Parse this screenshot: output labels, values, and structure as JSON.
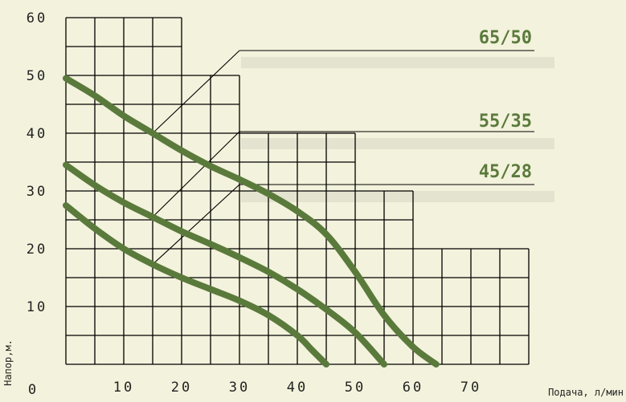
{
  "chart_data": {
    "type": "line",
    "xlabel": "Подача, л/мин",
    "ylabel": "Напор,м.",
    "xlim": [
      0,
      80
    ],
    "ylim": [
      0,
      60
    ],
    "x_ticks": [
      "10",
      "20",
      "30",
      "40",
      "50",
      "60",
      "70"
    ],
    "y_ticks": [
      "10",
      "20",
      "30",
      "40",
      "50",
      "60"
    ],
    "origin_label": "0",
    "grid": "stepped",
    "grid_steps": [
      {
        "x_max": 20,
        "y_max": 60
      },
      {
        "x_max": 30,
        "y_max": 50
      },
      {
        "x_max": 50,
        "y_max": 40
      },
      {
        "x_max": 60,
        "y_max": 30
      },
      {
        "x_max": 80,
        "y_max": 20
      }
    ],
    "series": [
      {
        "name": "65/50",
        "points": [
          [
            0,
            49.5
          ],
          [
            5,
            46.5
          ],
          [
            10,
            43
          ],
          [
            15,
            40
          ],
          [
            20,
            37
          ],
          [
            25,
            34.3
          ],
          [
            30,
            32
          ],
          [
            35,
            29.5
          ],
          [
            40,
            26.5
          ],
          [
            45,
            22.5
          ],
          [
            50,
            16
          ],
          [
            55,
            8.5
          ],
          [
            60,
            3
          ],
          [
            64,
            0
          ]
        ]
      },
      {
        "name": "55/35",
        "points": [
          [
            0,
            34.5
          ],
          [
            5,
            31
          ],
          [
            10,
            28
          ],
          [
            15,
            25.5
          ],
          [
            20,
            23
          ],
          [
            25,
            20.8
          ],
          [
            30,
            18.5
          ],
          [
            35,
            16
          ],
          [
            40,
            13
          ],
          [
            45,
            9.5
          ],
          [
            50,
            5.5
          ],
          [
            55,
            0
          ]
        ]
      },
      {
        "name": "45/28",
        "points": [
          [
            0,
            27.5
          ],
          [
            5,
            23.5
          ],
          [
            10,
            20
          ],
          [
            15,
            17.3
          ],
          [
            20,
            15
          ],
          [
            25,
            13
          ],
          [
            30,
            11
          ],
          [
            35,
            8.5
          ],
          [
            40,
            5
          ],
          [
            42.5,
            2.5
          ],
          [
            45,
            0
          ]
        ]
      }
    ],
    "line_color": "#5a7a3c",
    "background_color": "#f3f2dc",
    "grid_color": "#000000"
  }
}
